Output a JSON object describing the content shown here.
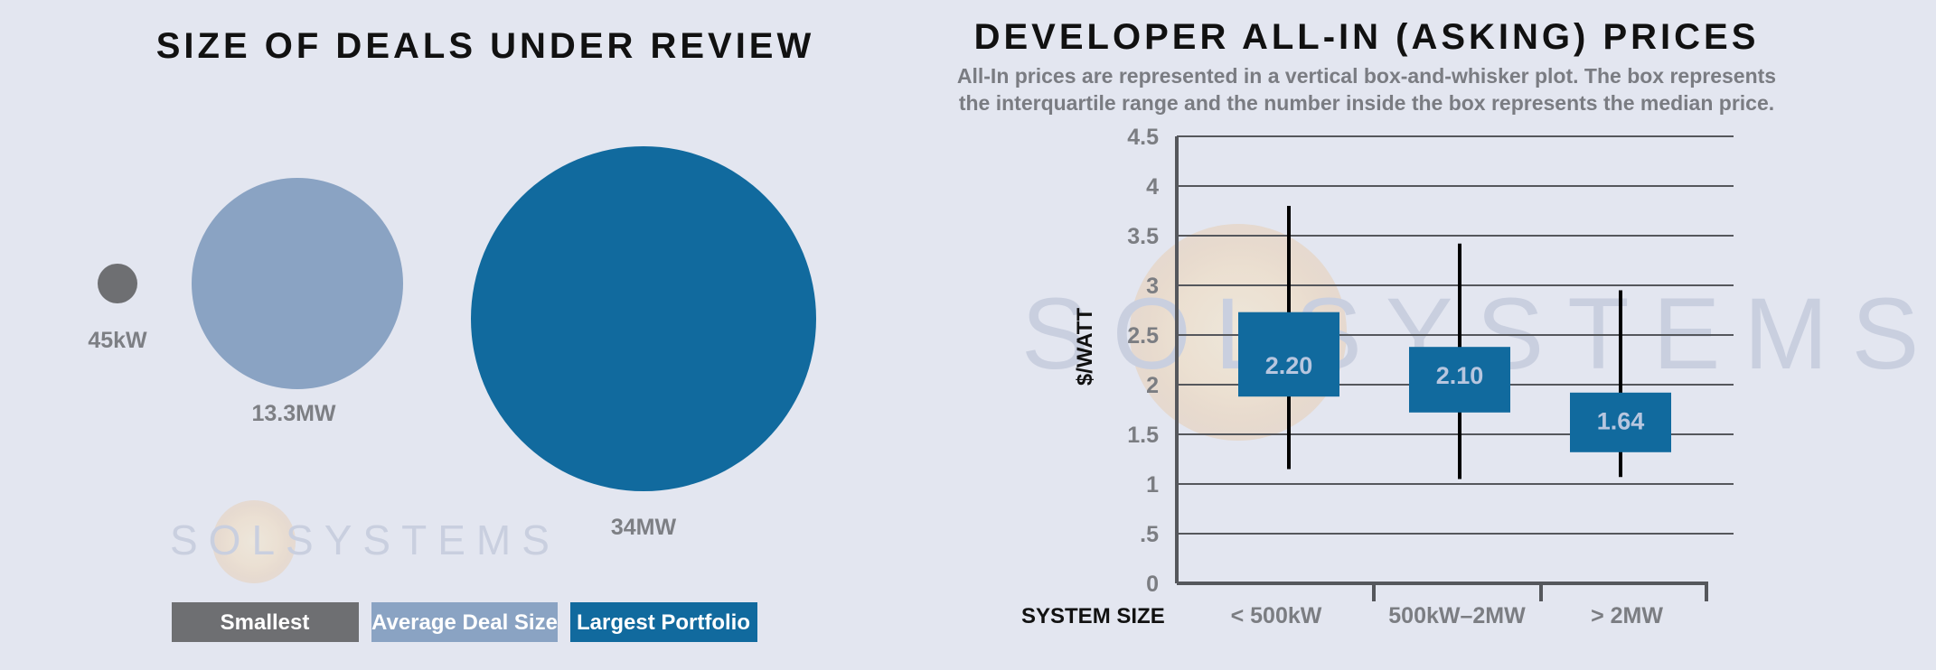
{
  "left_chart": {
    "title": "SIZE OF DEALS UNDER REVIEW",
    "watermark": "SOLSYSTEMS",
    "bubbles": [
      {
        "label": "45kW",
        "category": "Smallest",
        "color": "#6e6f72"
      },
      {
        "label": "13.3MW",
        "category": "Average Deal Size",
        "color": "#8aa3c3"
      },
      {
        "label": "34MW",
        "category": "Largest Portfolio",
        "color": "#116a9e"
      }
    ],
    "legend": [
      {
        "label": "Smallest",
        "color": "#6e6f72"
      },
      {
        "label": "Average Deal Size",
        "color": "#8aa3c3"
      },
      {
        "label": "Largest Portfolio",
        "color": "#116a9e"
      }
    ]
  },
  "right_chart": {
    "title": "DEVELOPER ALL-IN (ASKING) PRICES",
    "subtitle_line1": "All-In prices are represented in a vertical box-and-whisker plot. The box represents",
    "subtitle_line2": "the interquartile range and the number inside the box represents the median price.",
    "ylabel": "$/WATT",
    "xlabel": "SYSTEM SIZE",
    "watermark": "SOLSYSTEMS"
  },
  "chart_data": [
    {
      "type": "bubble",
      "title": "SIZE OF DEALS UNDER REVIEW",
      "categories": [
        "Smallest",
        "Average Deal Size",
        "Largest Portfolio"
      ],
      "labels": [
        "45kW",
        "13.3MW",
        "34MW"
      ],
      "values_mw": [
        0.045,
        13.3,
        34
      ],
      "legend": "bottom"
    },
    {
      "type": "boxplot",
      "title": "DEVELOPER ALL-IN (ASKING) PRICES",
      "xlabel": "SYSTEM SIZE",
      "ylabel": "$/WATT",
      "ylim": [
        0,
        4.5
      ],
      "yticks": [
        0,
        0.5,
        1,
        1.5,
        2,
        2.5,
        3,
        3.5,
        4,
        4.5
      ],
      "ytick_labels": [
        "0",
        ".5",
        "1",
        "1.5",
        "2",
        "2.5",
        "3",
        "3.5",
        "4",
        "4.5"
      ],
      "grid": true,
      "categories": [
        "< 500kW",
        "500kW–2MW",
        "> 2MW"
      ],
      "boxes": [
        {
          "min": 1.15,
          "q1": 1.88,
          "median": 2.2,
          "q3": 2.73,
          "max": 3.8,
          "label": "2.20"
        },
        {
          "min": 1.05,
          "q1": 1.72,
          "median": 2.1,
          "q3": 2.38,
          "max": 3.42,
          "label": "2.10"
        },
        {
          "min": 1.07,
          "q1": 1.32,
          "median": 1.64,
          "q3": 1.92,
          "max": 2.95,
          "label": "1.64"
        }
      ],
      "box_color": "#116a9e"
    }
  ]
}
